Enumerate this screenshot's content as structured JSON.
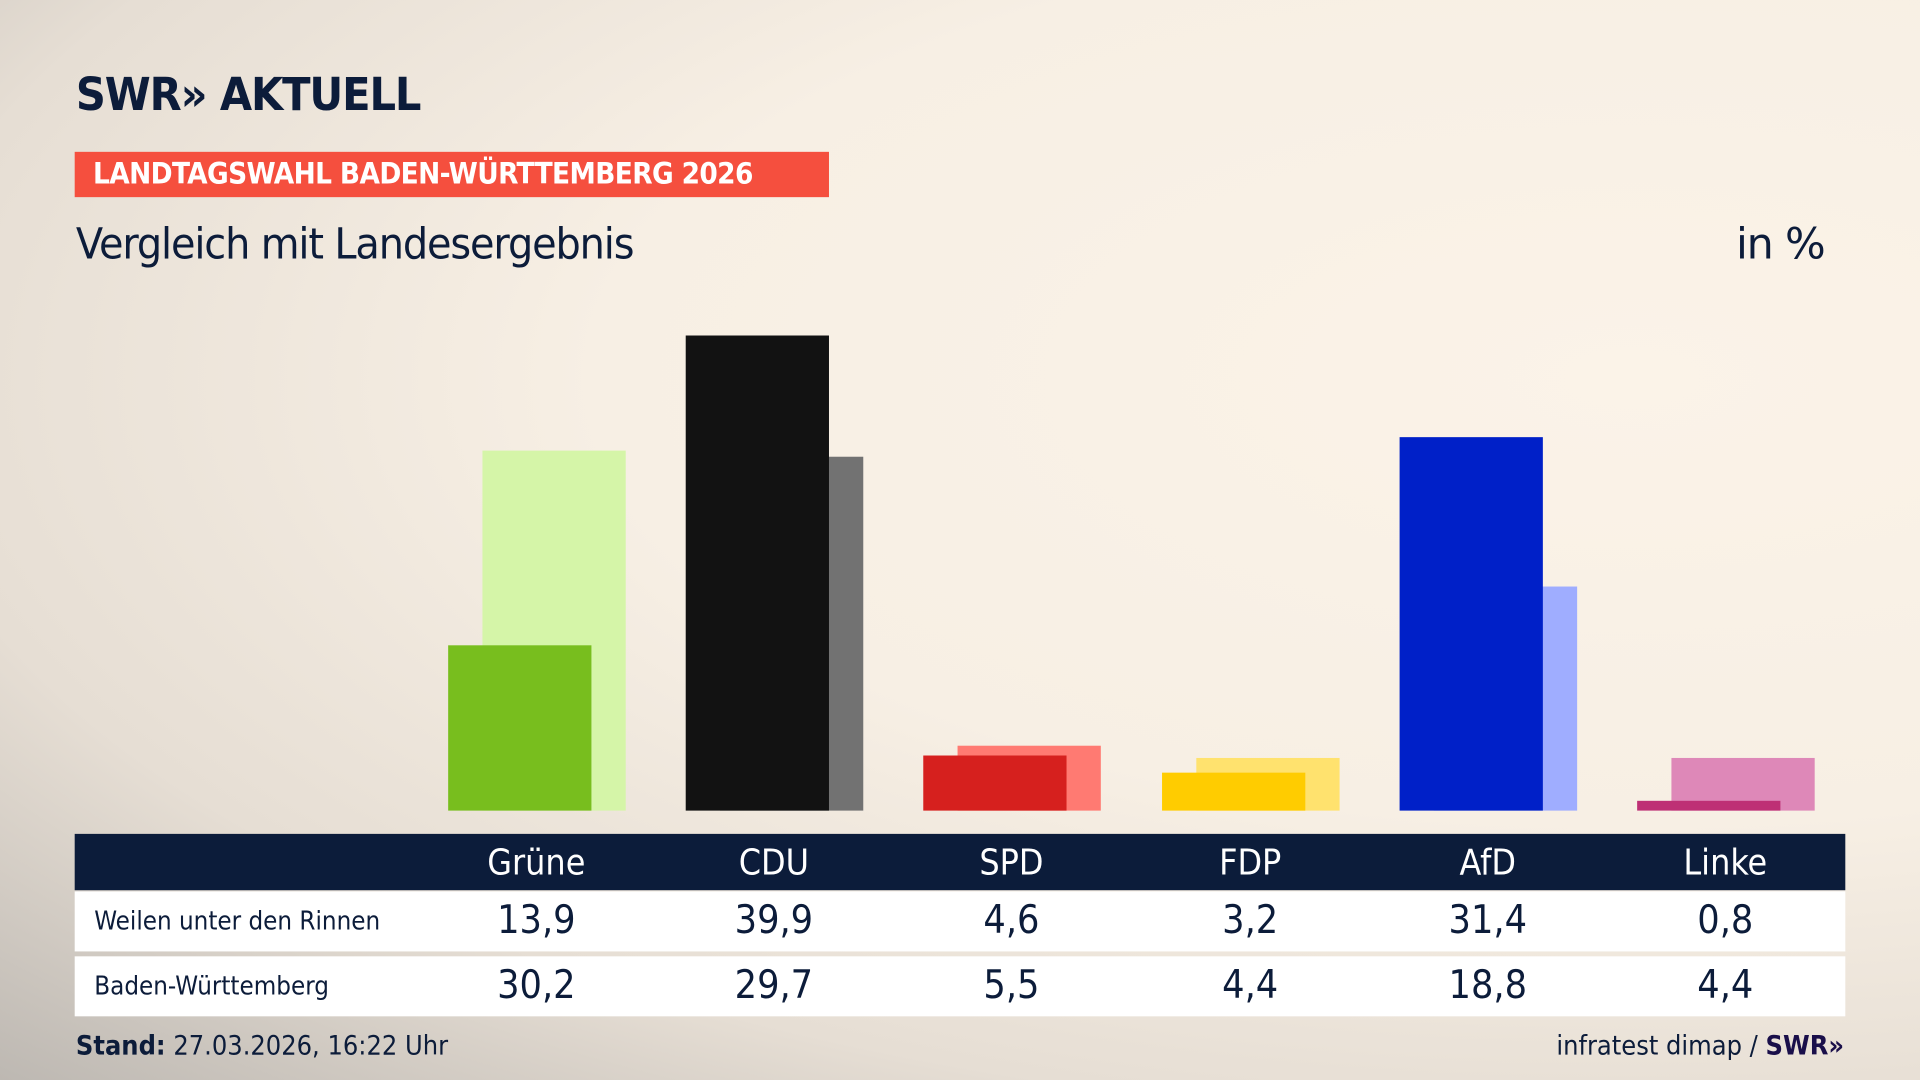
{
  "header": {
    "logo": "SWR» AKTUELL",
    "banner": "LANDTAGSWAHL BADEN-WÜRTTEMBERG 2026",
    "subtitle": "Vergleich mit Landesergebnis",
    "unit": "in %"
  },
  "chart_data": {
    "type": "bar",
    "categories": [
      "Grüne",
      "CDU",
      "SPD",
      "FDP",
      "AfD",
      "Linke"
    ],
    "series": [
      {
        "name": "Weilen unter den Rinnen",
        "values": [
          "13,9",
          "39,9",
          "4,6",
          "3,2",
          "31,4",
          "0,8"
        ],
        "colors": [
          "#78be1e",
          "#121212",
          "#d6201e",
          "#ffcc00",
          "#0020c8",
          "#be3075"
        ]
      },
      {
        "name": "Baden-Württemberg",
        "values": [
          "30,2",
          "29,7",
          "5,5",
          "4,4",
          "18,8",
          "4,4"
        ],
        "colors": [
          "#d5f5a8",
          "#727272",
          "#ff7a72",
          "#ffe26e",
          "#9fadff",
          "#de88b8"
        ]
      }
    ],
    "ylim": [
      0,
      40
    ]
  },
  "footer": {
    "stand_label": "Stand:",
    "stand_value": "27.03.2026, 16:22 Uhr",
    "source": "infratest dimap /",
    "source_logo": "SWR»"
  }
}
